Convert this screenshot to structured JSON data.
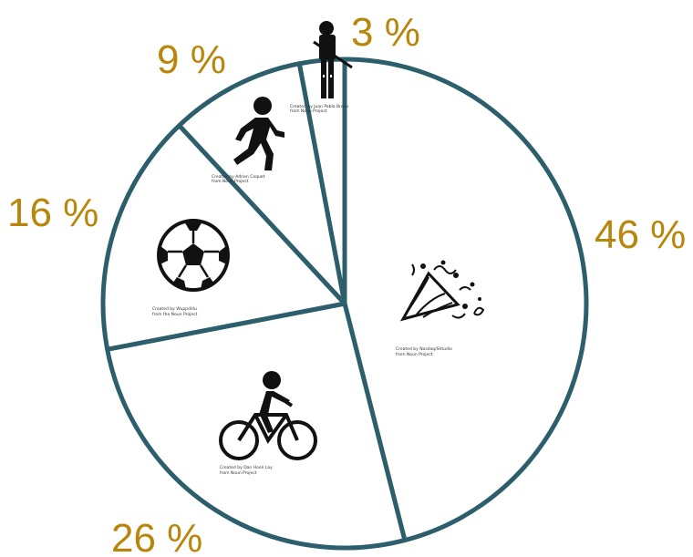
{
  "chart_data": {
    "type": "pie",
    "slices": [
      {
        "value": 46,
        "label": "46 %",
        "icon": "party-popper-icon",
        "credit": [
          "Created by Nasdaq/Shtudio",
          "from Noun Project"
        ]
      },
      {
        "value": 26,
        "label": "26 %",
        "icon": "cyclist-icon",
        "credit": [
          "Created by Dan Hoon Lay",
          "from Noun Project"
        ]
      },
      {
        "value": 16,
        "label": "16 %",
        "icon": "soccer-ball-icon",
        "credit": [
          "Created by Wuppdidu",
          "from the Noun Project"
        ]
      },
      {
        "value": 9,
        "label": "9 %",
        "icon": "runner-icon",
        "credit": [
          "Created by Adrien Coquet",
          "from Noun Project"
        ]
      },
      {
        "value": 3,
        "label": "3 %",
        "icon": "armed-guard-icon",
        "credit": [
          "Created by Juan Pablo Bravo",
          "from Noun Project"
        ]
      }
    ],
    "stroke_color": "#2c5f6b",
    "fill_color": "#ffffff",
    "label_color": "#b8860b",
    "start": "top",
    "direction": "clockwise"
  }
}
